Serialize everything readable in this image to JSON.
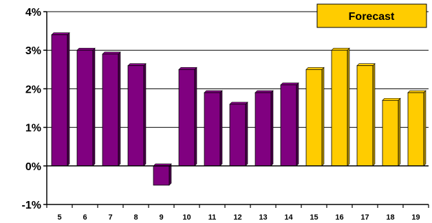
{
  "chart_data": {
    "type": "bar",
    "categories": [
      "5",
      "6",
      "7",
      "8",
      "9",
      "10",
      "11",
      "12",
      "13",
      "14",
      "15",
      "16",
      "17",
      "18",
      "19"
    ],
    "series": [
      {
        "values": [
          3.4,
          3.0,
          2.9,
          2.6,
          -0.5,
          2.5,
          1.9,
          1.6,
          1.9,
          2.1,
          null,
          null,
          null,
          null,
          null
        ]
      },
      {
        "name": "Forecast",
        "values": [
          null,
          null,
          null,
          null,
          null,
          null,
          null,
          null,
          null,
          null,
          2.5,
          3.0,
          2.6,
          1.7,
          1.9
        ]
      }
    ],
    "ylim": [
      -1,
      4
    ],
    "yticks": [
      "-1%",
      "0%",
      "1%",
      "2%",
      "3%",
      "4%"
    ],
    "grid": true,
    "legend": {
      "label": "Forecast",
      "placement": "top-right"
    },
    "colors": {
      "actual": "#800080",
      "actual_side": "#4a004a",
      "forecast": "#FFCC00",
      "forecast_side": "#b38f00",
      "legend_fill": "#FFCC00"
    }
  }
}
